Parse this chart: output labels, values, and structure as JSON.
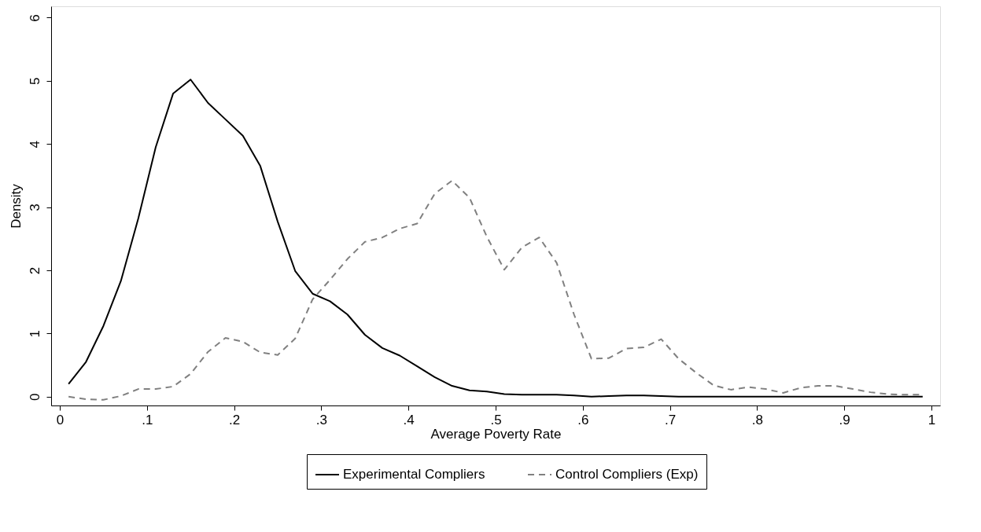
{
  "chart_data": {
    "type": "line",
    "xlabel": "Average Poverty Rate",
    "ylabel": "Density",
    "x": [
      0.01,
      0.03,
      0.05,
      0.07,
      0.09,
      0.11,
      0.13,
      0.15,
      0.17,
      0.19,
      0.21,
      0.23,
      0.25,
      0.27,
      0.29,
      0.31,
      0.33,
      0.35,
      0.37,
      0.39,
      0.41,
      0.43,
      0.45,
      0.47,
      0.49,
      0.51,
      0.53,
      0.55,
      0.57,
      0.59,
      0.61,
      0.63,
      0.65,
      0.67,
      0.69,
      0.71,
      0.73,
      0.75,
      0.77,
      0.79,
      0.81,
      0.83,
      0.85,
      0.87,
      0.89,
      0.91,
      0.93,
      0.95,
      0.97,
      0.99
    ],
    "series": [
      {
        "name": "Experimental Compliers",
        "color": "#000000",
        "line_style": "solid",
        "values": [
          0.2,
          0.55,
          1.12,
          1.83,
          2.82,
          3.95,
          4.8,
          5.02,
          4.65,
          4.39,
          4.13,
          3.65,
          2.77,
          1.99,
          1.63,
          1.51,
          1.3,
          0.98,
          0.77,
          0.65,
          0.48,
          0.31,
          0.17,
          0.1,
          0.08,
          0.04,
          0.03,
          0.03,
          0.03,
          0.02,
          0.0,
          0.01,
          0.02,
          0.02,
          0.01,
          0,
          0,
          0,
          0,
          0,
          0,
          0,
          0,
          0,
          0,
          0,
          0,
          0,
          0,
          0
        ]
      },
      {
        "name": "Control Compliers (Exp)",
        "color": "#808080",
        "line_style": "dashed",
        "values": [
          0,
          -0.04,
          -0.05,
          0.01,
          0.12,
          0.12,
          0.16,
          0.36,
          0.71,
          0.93,
          0.87,
          0.7,
          0.66,
          0.92,
          1.54,
          1.85,
          2.18,
          2.45,
          2.52,
          2.66,
          2.74,
          3.21,
          3.42,
          3.15,
          2.53,
          2.01,
          2.36,
          2.52,
          2.12,
          1.3,
          0.6,
          0.61,
          0.76,
          0.78,
          0.91,
          0.6,
          0.38,
          0.18,
          0.11,
          0.15,
          0.12,
          0.06,
          0.14,
          0.17,
          0.17,
          0.12,
          0.07,
          0.04,
          0.03,
          0.03
        ]
      }
    ],
    "xlim": [
      -0.01,
      1.01
    ],
    "ylim": [
      -0.14,
      6.18
    ],
    "xticks": [
      0,
      {
        "value": 0.1,
        "label": ".1"
      },
      {
        "value": 0.2,
        "label": ".2"
      },
      {
        "value": 0.3,
        "label": ".3"
      },
      {
        "value": 0.4,
        "label": ".4"
      },
      {
        "value": 0.5,
        "label": ".5"
      },
      {
        "value": 0.6,
        "label": ".6"
      },
      {
        "value": 0.7,
        "label": ".7"
      },
      {
        "value": 0.8,
        "label": ".8"
      },
      {
        "value": 0.9,
        "label": ".9"
      },
      1
    ],
    "yticks": [
      0,
      1,
      2,
      3,
      4,
      5,
      6
    ],
    "legend": "bottom",
    "grid": false,
    "marker": "none"
  }
}
